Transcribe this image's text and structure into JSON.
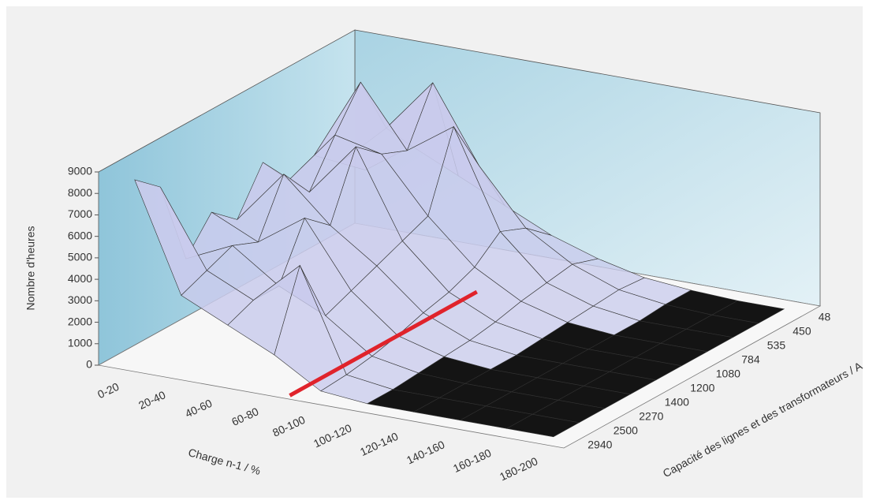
{
  "chart_data": {
    "type": "surface3d",
    "x_label": "Charge n-1 / %",
    "y_label": "Capacité des lignes et des transformateurs / A",
    "z_label": "Nombre d'heures",
    "x_categories": [
      "0-20",
      "20-40",
      "40-60",
      "60-80",
      "80-100",
      "100-120",
      "120-140",
      "140-160",
      "160-180",
      "180-200"
    ],
    "y_categories": [
      "48",
      "450",
      "535",
      "784",
      "1080",
      "1200",
      "1400",
      "2270",
      "2500",
      "2940"
    ],
    "z": [
      [
        3000,
        4500,
        3500,
        2500,
        1500,
        800,
        300,
        100,
        0,
        0
      ],
      [
        4000,
        6000,
        8500,
        5000,
        2500,
        1200,
        400,
        100,
        0,
        0
      ],
      [
        5000,
        8800,
        6000,
        7500,
        3000,
        1000,
        300,
        0,
        0,
        0
      ],
      [
        4500,
        7000,
        6500,
        4000,
        2000,
        800,
        200,
        0,
        0,
        0
      ],
      [
        6000,
        5000,
        7500,
        3500,
        1500,
        500,
        100,
        0,
        0,
        0
      ],
      [
        4000,
        6500,
        4500,
        3000,
        1200,
        300,
        0,
        0,
        0,
        0
      ],
      [
        5000,
        4000,
        5500,
        2500,
        800,
        200,
        0,
        0,
        0,
        0
      ],
      [
        3500,
        4500,
        3000,
        2000,
        500,
        100,
        0,
        0,
        0,
        0
      ],
      [
        7500,
        4000,
        3000,
        5000,
        300,
        0,
        0,
        0,
        0,
        0
      ],
      [
        8500,
        3500,
        2500,
        1500,
        200,
        0,
        0,
        0,
        0,
        0
      ]
    ],
    "zlim": [
      0,
      9000
    ],
    "zticks": [
      0,
      1000,
      2000,
      3000,
      4000,
      5000,
      6000,
      7000,
      8000,
      9000
    ],
    "surface_color": "#c9cbec",
    "zero_color": "#141414",
    "threshold_color": "#e0232b"
  }
}
